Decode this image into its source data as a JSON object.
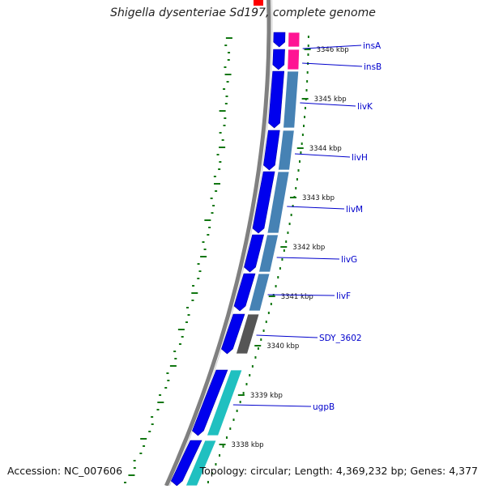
{
  "title": "Shigella dysenteriae Sd197, complete genome",
  "accession": "Accession: NC_007606",
  "topology": "Topology: circular; Length: 4,369,232 bp; Genes: 4,377",
  "ticks": [
    "3346 kbp",
    "3345 kbp",
    "3344 kbp",
    "3343 kbp",
    "3342 kbp",
    "3341 kbp",
    "3340 kbp",
    "3339 kbp",
    "3338 kbp"
  ],
  "genes": [
    "insA",
    "insB",
    "livK",
    "livH",
    "livM",
    "livG",
    "livF",
    "SDY_3602",
    "ugpB"
  ],
  "colors": {
    "backbone": "#808080",
    "cds": "#0000ee",
    "ins": "#ff1493",
    "liv": "#4682b4",
    "hypothetical": "#555555",
    "ugp": "#20c0c0",
    "label": "#0000cc",
    "dots": "#117711",
    "marker": "#ff0000"
  }
}
